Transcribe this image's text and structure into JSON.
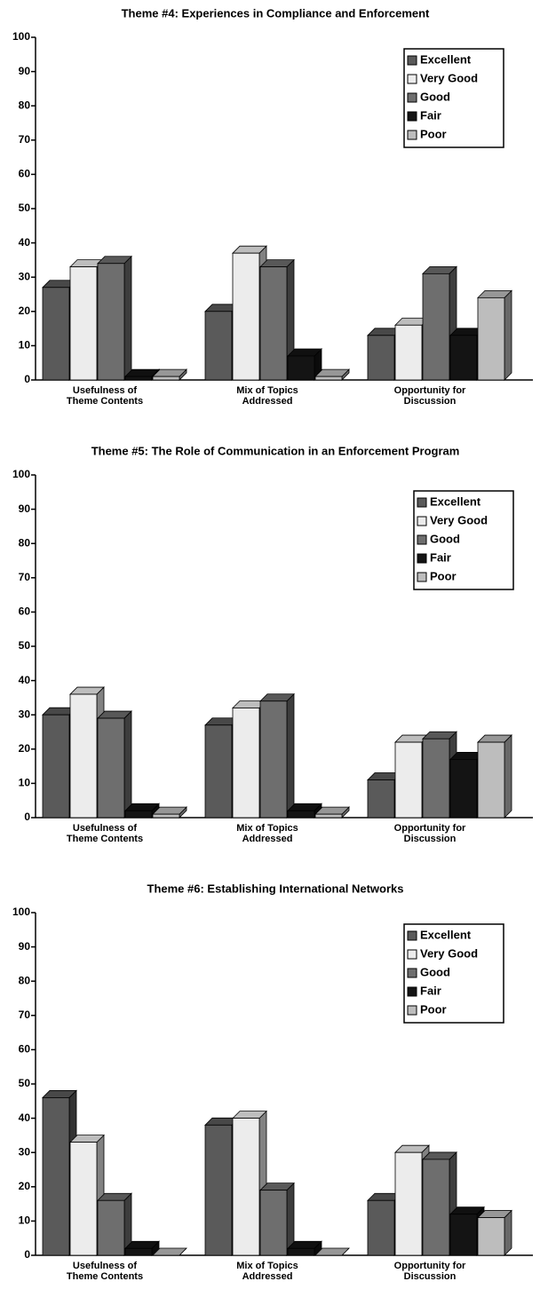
{
  "chart_data": [
    {
      "type": "bar3d",
      "title": "Theme #4: Experiences in Compliance and Enforcement",
      "categories": [
        "Usefulness of Theme Contents",
        "Mix of Topics Addressed",
        "Opportunity for Discussion"
      ],
      "series": [
        {
          "name": "Excellent",
          "color": "#5a5a5a",
          "values": [
            27,
            20,
            13
          ]
        },
        {
          "name": "Very Good",
          "color": "#ececec",
          "values": [
            33,
            37,
            16
          ]
        },
        {
          "name": "Good",
          "color": "#6e6e6e",
          "values": [
            34,
            33,
            31
          ]
        },
        {
          "name": "Fair",
          "color": "#141414",
          "values": [
            1,
            7,
            13
          ]
        },
        {
          "name": "Poor",
          "color": "#bdbdbd",
          "values": [
            1,
            1,
            24
          ]
        }
      ],
      "ylim": [
        0,
        100
      ],
      "yticks": [
        0,
        10,
        20,
        30,
        40,
        50,
        60,
        70,
        80,
        90,
        100
      ],
      "legend": "upper right"
    },
    {
      "type": "bar3d",
      "title": "Theme #5: The Role of Communication in an Enforcement Program",
      "categories": [
        "Usefulness of Theme Contents",
        "Mix of Topics Addressed",
        "Opportunity for Discussion"
      ],
      "series": [
        {
          "name": "Excellent",
          "color": "#5a5a5a",
          "values": [
            30,
            27,
            11
          ]
        },
        {
          "name": "Very Good",
          "color": "#ececec",
          "values": [
            36,
            32,
            22
          ]
        },
        {
          "name": "Good",
          "color": "#6e6e6e",
          "values": [
            29,
            34,
            23
          ]
        },
        {
          "name": "Fair",
          "color": "#141414",
          "values": [
            2,
            2,
            17
          ]
        },
        {
          "name": "Poor",
          "color": "#bdbdbd",
          "values": [
            1,
            1,
            22
          ]
        }
      ],
      "ylim": [
        0,
        100
      ],
      "yticks": [
        0,
        10,
        20,
        30,
        40,
        50,
        60,
        70,
        80,
        90,
        100
      ],
      "legend": "upper right"
    },
    {
      "type": "bar3d",
      "title": "Theme #6: Establishing International Networks",
      "categories": [
        "Usefulness of Theme Contents",
        "Mix of Topics Addressed",
        "Opportunity for Discussion"
      ],
      "series": [
        {
          "name": "Excellent",
          "color": "#5a5a5a",
          "values": [
            46,
            38,
            16
          ]
        },
        {
          "name": "Very Good",
          "color": "#ececec",
          "values": [
            33,
            40,
            30
          ]
        },
        {
          "name": "Good",
          "color": "#6e6e6e",
          "values": [
            16,
            19,
            28
          ]
        },
        {
          "name": "Fair",
          "color": "#141414",
          "values": [
            2,
            2,
            12
          ]
        },
        {
          "name": "Poor",
          "color": "#bdbdbd",
          "values": [
            0,
            0,
            11
          ]
        }
      ],
      "ylim": [
        0,
        100
      ],
      "yticks": [
        0,
        10,
        20,
        30,
        40,
        50,
        60,
        70,
        80,
        90,
        100
      ],
      "legend": "upper right"
    }
  ]
}
